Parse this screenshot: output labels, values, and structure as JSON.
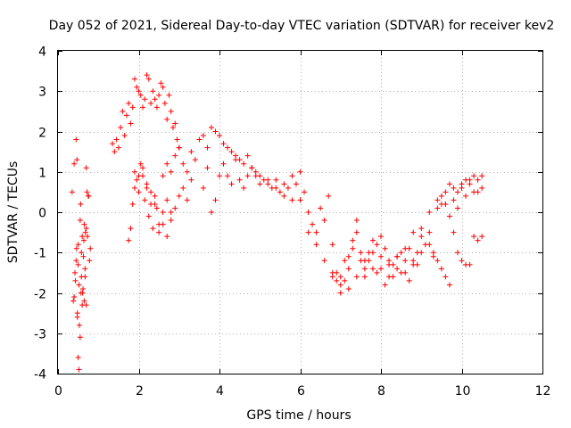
{
  "chart_data": {
    "type": "scatter",
    "title": "Day 052 of 2021, Sidereal Day-to-day VTEC variation (SDTVAR) for receiver kev2",
    "xlabel": "GPS time / hours",
    "ylabel": "SDTVAR / TECUs",
    "xlim": [
      0,
      12
    ],
    "ylim": [
      -4,
      4
    ],
    "xticks": [
      "0",
      "2",
      "4",
      "6",
      "8",
      "10",
      "12"
    ],
    "yticks": [
      "-4",
      "-3",
      "-2",
      "-1",
      "0",
      "1",
      "2",
      "3",
      "4"
    ],
    "grid": true,
    "marker": "+",
    "color": "#ff0000",
    "series": [
      {
        "name": "SDTVAR",
        "x": [
          0.35,
          0.38,
          0.4,
          0.42,
          0.45,
          0.45,
          0.47,
          0.48,
          0.5,
          0.5,
          0.52,
          0.52,
          0.55,
          0.55,
          0.57,
          0.58,
          0.6,
          0.6,
          0.62,
          0.63,
          0.65,
          0.65,
          0.67,
          0.68,
          0.7,
          0.7,
          0.72,
          0.75,
          0.4,
          0.43,
          0.46,
          0.48,
          0.5,
          0.53,
          0.56,
          0.58,
          0.61,
          0.64,
          0.67,
          0.7,
          0.73,
          0.76,
          0.78,
          0.8,
          1.35,
          1.4,
          1.45,
          1.5,
          1.55,
          1.6,
          1.65,
          1.7,
          1.75,
          1.8,
          1.85,
          1.9,
          1.95,
          2.0,
          2.05,
          2.1,
          2.15,
          2.2,
          2.25,
          2.3,
          2.35,
          2.4,
          2.45,
          2.5,
          2.55,
          2.6,
          2.65,
          2.7,
          2.75,
          2.8,
          2.85,
          2.9,
          2.95,
          3.0,
          1.9,
          1.95,
          2.0,
          2.05,
          2.1,
          2.15,
          2.2,
          2.25,
          2.3,
          2.35,
          2.4,
          2.45,
          2.5,
          2.6,
          2.7,
          2.8,
          1.75,
          1.8,
          1.85,
          1.9,
          2.0,
          2.1,
          2.2,
          2.3,
          2.4,
          2.5,
          2.6,
          2.7,
          2.8,
          2.9,
          3.0,
          3.1,
          3.2,
          3.3,
          2.6,
          2.7,
          2.8,
          2.9,
          3.0,
          3.1,
          3.2,
          3.3,
          3.4,
          3.5,
          3.6,
          3.7,
          3.8,
          3.9,
          4.0,
          4.1,
          4.2,
          4.3,
          4.4,
          4.5,
          4.6,
          4.7,
          4.8,
          4.9,
          5.0,
          5.1,
          5.2,
          5.3,
          5.4,
          5.5,
          5.6,
          5.7,
          5.8,
          5.9,
          6.0,
          6.1,
          3.6,
          3.7,
          3.8,
          3.9,
          4.0,
          4.1,
          4.2,
          4.3,
          4.4,
          4.5,
          4.6,
          4.7,
          4.8,
          4.9,
          5.0,
          5.2,
          5.4,
          5.6,
          5.8,
          6.0,
          6.2,
          6.4,
          6.6,
          6.8,
          7.0,
          7.2,
          7.4,
          7.6,
          7.8,
          8.0,
          8.2,
          8.4,
          8.6,
          8.8,
          9.0,
          9.2,
          9.4,
          9.6,
          6.2,
          6.3,
          6.4,
          6.5,
          6.6,
          6.7,
          6.8,
          6.9,
          7.0,
          7.1,
          7.2,
          7.3,
          7.4,
          7.5,
          7.6,
          7.7,
          7.8,
          7.9,
          8.0,
          8.1,
          8.2,
          8.3,
          8.4,
          8.5,
          8.6,
          8.7,
          8.8,
          8.9,
          9.0,
          9.1,
          9.2,
          9.3,
          9.4,
          9.5,
          9.6,
          9.7,
          9.8,
          9.9,
          10.0,
          10.1,
          10.2,
          10.3,
          10.4,
          10.5,
          9.2,
          9.3,
          9.4,
          9.5,
          9.6,
          9.7,
          9.8,
          9.9,
          10.0,
          10.1,
          10.2,
          10.3,
          10.4,
          10.5,
          9.5,
          9.6,
          9.7,
          9.8,
          9.9,
          10.0,
          10.1,
          10.2,
          10.3,
          10.4,
          10.5,
          6.8,
          6.9,
          7.0,
          7.1,
          7.2,
          7.3,
          7.4,
          7.5,
          7.6,
          7.7,
          7.8,
          7.9,
          8.0,
          8.1,
          8.2,
          8.3,
          8.4,
          8.5,
          8.6,
          8.7,
          8.8,
          8.9,
          9.0
        ],
        "y": [
          0.5,
          -2.2,
          1.2,
          -1.5,
          1.8,
          -1.2,
          1.3,
          -2.5,
          -0.8,
          -3.6,
          -1.8,
          -3.9,
          -0.2,
          -3.1,
          -2.0,
          -1.0,
          -2.3,
          -0.6,
          -1.9,
          -1.1,
          -2.2,
          -0.3,
          -1.6,
          -0.5,
          1.1,
          -2.3,
          0.5,
          0.4,
          -2.1,
          -1.7,
          -0.9,
          -2.6,
          -1.3,
          -2.8,
          0.2,
          -1.6,
          -2.0,
          -0.7,
          -1.4,
          -0.4,
          -0.6,
          0.4,
          -1.2,
          -0.9,
          1.7,
          1.5,
          1.8,
          1.6,
          2.1,
          2.5,
          1.9,
          2.4,
          2.7,
          2.2,
          2.6,
          3.3,
          3.1,
          3.0,
          2.9,
          2.6,
          2.8,
          3.4,
          3.3,
          2.7,
          3.0,
          2.8,
          2.6,
          2.9,
          3.2,
          3.1,
          2.7,
          2.3,
          2.9,
          2.5,
          2.1,
          2.2,
          1.8,
          1.6,
          1.0,
          0.8,
          0.5,
          1.2,
          0.9,
          0.3,
          0.6,
          -0.1,
          0.2,
          -0.4,
          0.4,
          0.1,
          -0.5,
          -0.3,
          -0.6,
          0.0,
          -0.7,
          -0.4,
          0.2,
          0.6,
          0.9,
          1.1,
          0.7,
          0.5,
          0.2,
          -0.3,
          0.0,
          0.3,
          -0.2,
          0.1,
          0.4,
          0.6,
          0.3,
          0.8,
          0.9,
          1.2,
          1.0,
          1.4,
          1.6,
          1.2,
          1.0,
          1.5,
          1.3,
          1.8,
          1.9,
          1.6,
          2.1,
          2.0,
          1.9,
          1.7,
          1.6,
          1.5,
          1.4,
          1.3,
          1.2,
          1.4,
          1.1,
          1.0,
          0.9,
          0.8,
          0.7,
          0.6,
          0.8,
          0.5,
          0.7,
          0.6,
          0.9,
          0.7,
          1.0,
          0.5,
          0.6,
          1.1,
          0.0,
          0.3,
          0.9,
          1.2,
          0.9,
          0.7,
          1.3,
          0.8,
          0.6,
          0.9,
          1.1,
          0.9,
          0.7,
          0.8,
          0.6,
          0.4,
          0.3,
          0.3,
          -0.5,
          -0.8,
          -1.2,
          -1.6,
          -1.8,
          -1.9,
          -1.6,
          -1.2,
          -1.0,
          -1.1,
          -1.3,
          -1.1,
          -0.9,
          -0.5,
          -0.4,
          0.0,
          0.3,
          0.2,
          0.0,
          -0.3,
          -0.5,
          0.1,
          -0.2,
          0.4,
          -0.8,
          -1.5,
          -2.0,
          -1.7,
          -1.1,
          -0.7,
          -0.2,
          -1.2,
          -1.6,
          -1.2,
          -1.4,
          -0.8,
          -0.6,
          -0.9,
          -1.2,
          -1.6,
          -1.4,
          -1.0,
          -1.5,
          -1.7,
          -1.2,
          -1.3,
          -1.0,
          -0.8,
          -0.5,
          -1.1,
          0.1,
          0.4,
          0.2,
          -0.1,
          0.3,
          0.1,
          0.6,
          0.8,
          0.7,
          0.5,
          0.8,
          0.6,
          -0.8,
          -1.0,
          -1.2,
          -1.4,
          -1.6,
          -1.8,
          -0.5,
          -1.0,
          -1.2,
          -1.3,
          -1.3,
          -0.6,
          -0.7,
          -0.6,
          0.2,
          0.5,
          0.7,
          0.6,
          0.5,
          0.7,
          0.4,
          0.8,
          0.9,
          0.5,
          0.9,
          -1.5,
          -1.7,
          -1.6,
          -1.2,
          -1.4,
          -0.9,
          -0.5,
          -1.0,
          -1.4,
          -1.0,
          -0.7,
          -1.5,
          -1.4,
          -1.8,
          -1.6,
          -1.3,
          -1.1,
          -1.5,
          -1.2,
          -0.9,
          -1.3,
          -1.0,
          -0.6
        ]
      }
    ]
  }
}
